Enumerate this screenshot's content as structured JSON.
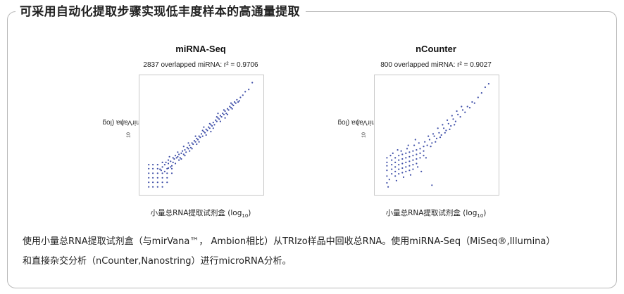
{
  "heading": "可采用自动化提取步骤实现低丰度样本的高通量提取",
  "chart_data": [
    {
      "type": "scatter",
      "title": "miRNA-Seq",
      "subtitle": "2837 overlapped miRNA: r² = 0.9706",
      "xlabel_main": "小量总RNA提取试剂盒 (log",
      "xlabel_sub": "10",
      "xlabel_end": ")",
      "ylabel_main": "mirVana (log",
      "ylabel_sub": "10",
      "ylabel_end": ")",
      "r_squared": 0.9706,
      "overlapped": 2837,
      "xlim": [
        0,
        10
      ],
      "ylim": [
        0,
        10
      ],
      "color": "#3f4fa8",
      "points": [
        [
          0.55,
          0.45
        ],
        [
          0.55,
          0.85
        ],
        [
          0.55,
          1.25
        ],
        [
          0.55,
          1.65
        ],
        [
          0.55,
          2.05
        ],
        [
          0.9,
          0.45
        ],
        [
          0.9,
          0.85
        ],
        [
          0.9,
          1.25
        ],
        [
          0.9,
          1.65
        ],
        [
          0.9,
          2.05
        ],
        [
          1.3,
          0.45
        ],
        [
          1.3,
          0.85
        ],
        [
          1.3,
          1.25
        ],
        [
          1.3,
          1.65
        ],
        [
          1.3,
          2.05
        ],
        [
          1.7,
          0.45
        ],
        [
          1.7,
          0.85
        ],
        [
          1.7,
          1.25
        ],
        [
          1.7,
          1.65
        ],
        [
          1.7,
          2.2
        ],
        [
          0.55,
          2.4
        ],
        [
          0.9,
          2.4
        ],
        [
          1.3,
          2.4
        ],
        [
          1.7,
          2.6
        ],
        [
          2.1,
          0.85
        ],
        [
          2.1,
          1.25
        ],
        [
          2.1,
          1.65
        ],
        [
          2.1,
          2.05
        ],
        [
          2.5,
          1.65
        ],
        [
          2.5,
          2.05
        ],
        [
          1.5,
          2.0
        ],
        [
          1.9,
          2.4
        ],
        [
          2.2,
          2.5
        ],
        [
          2.4,
          2.7
        ],
        [
          2.6,
          2.6
        ],
        [
          2.7,
          2.9
        ],
        [
          2.9,
          3.0
        ],
        [
          2.2,
          2.8
        ],
        [
          2.5,
          2.3
        ],
        [
          2.8,
          3.2
        ],
        [
          3.0,
          3.1
        ],
        [
          3.1,
          3.3
        ],
        [
          3.3,
          3.4
        ],
        [
          3.2,
          3.0
        ],
        [
          3.4,
          3.6
        ],
        [
          3.5,
          3.3
        ],
        [
          3.6,
          3.7
        ],
        [
          3.7,
          3.5
        ],
        [
          3.8,
          3.9
        ],
        [
          3.9,
          3.8
        ],
        [
          4.0,
          4.1
        ],
        [
          4.1,
          3.9
        ],
        [
          4.2,
          4.3
        ],
        [
          4.3,
          4.2
        ],
        [
          4.4,
          4.5
        ],
        [
          4.5,
          4.4
        ],
        [
          4.6,
          4.7
        ],
        [
          4.7,
          4.6
        ],
        [
          4.8,
          4.9
        ],
        [
          4.9,
          4.8
        ],
        [
          5.0,
          5.1
        ],
        [
          5.1,
          4.9
        ],
        [
          5.2,
          5.3
        ],
        [
          5.3,
          5.2
        ],
        [
          5.4,
          5.5
        ],
        [
          5.5,
          5.4
        ],
        [
          5.6,
          5.7
        ],
        [
          5.7,
          5.6
        ],
        [
          5.8,
          5.9
        ],
        [
          5.9,
          5.8
        ],
        [
          6.0,
          6.1
        ],
        [
          6.1,
          5.9
        ],
        [
          6.2,
          6.3
        ],
        [
          6.3,
          6.2
        ],
        [
          6.4,
          6.5
        ],
        [
          6.5,
          6.4
        ],
        [
          6.6,
          6.7
        ],
        [
          6.7,
          6.6
        ],
        [
          6.8,
          6.9
        ],
        [
          6.9,
          6.8
        ],
        [
          7.0,
          7.1
        ],
        [
          7.1,
          6.9
        ],
        [
          7.2,
          7.3
        ],
        [
          7.3,
          7.2
        ],
        [
          7.4,
          7.5
        ],
        [
          7.5,
          7.4
        ],
        [
          7.6,
          7.7
        ],
        [
          7.7,
          7.6
        ],
        [
          7.8,
          7.9
        ],
        [
          7.9,
          7.8
        ],
        [
          8.0,
          8.1
        ],
        [
          8.1,
          7.9
        ],
        [
          8.3,
          8.3
        ],
        [
          8.5,
          8.5
        ],
        [
          8.7,
          8.8
        ],
        [
          9.0,
          9.0
        ],
        [
          9.3,
          9.6
        ],
        [
          3.0,
          3.5
        ],
        [
          3.3,
          2.9
        ],
        [
          3.6,
          3.2
        ],
        [
          3.9,
          4.3
        ],
        [
          4.2,
          3.8
        ],
        [
          4.5,
          4.9
        ],
        [
          4.8,
          4.4
        ],
        [
          5.1,
          5.4
        ],
        [
          5.4,
          5.0
        ],
        [
          5.7,
          6.0
        ],
        [
          6.0,
          5.6
        ],
        [
          6.3,
          6.6
        ],
        [
          6.6,
          6.2
        ],
        [
          6.9,
          7.2
        ],
        [
          7.2,
          6.8
        ],
        [
          7.5,
          7.8
        ],
        [
          2.4,
          2.2
        ],
        [
          2.0,
          2.6
        ],
        [
          2.6,
          3.0
        ],
        [
          2.3,
          3.1
        ],
        [
          2.8,
          2.5
        ],
        [
          3.1,
          2.8
        ],
        [
          1.6,
          1.9
        ],
        [
          1.9,
          1.8
        ],
        [
          2.2,
          2.1
        ],
        [
          3.5,
          4.0
        ],
        [
          4.0,
          3.6
        ],
        [
          4.6,
          4.2
        ],
        [
          5.2,
          5.7
        ],
        [
          5.8,
          5.3
        ],
        [
          6.4,
          6.9
        ],
        [
          7.0,
          6.5
        ],
        [
          7.6,
          7.3
        ],
        [
          8.2,
          8.0
        ]
      ]
    },
    {
      "type": "scatter",
      "title": "nCounter",
      "subtitle": "800 overlapped miRNA: r² = 0.9027",
      "xlabel_main": "小量总RNA提取试剂盒 (log",
      "xlabel_sub": "10",
      "xlabel_end": ")",
      "ylabel_main": "mirVana (log",
      "ylabel_sub": "10",
      "ylabel_end": ")",
      "r_squared": 0.9027,
      "overlapped": 800,
      "xlim": [
        0,
        10
      ],
      "ylim": [
        0,
        10
      ],
      "color": "#3f4fa8",
      "points": [
        [
          0.8,
          2.6
        ],
        [
          0.8,
          2.3
        ],
        [
          0.8,
          1.9
        ],
        [
          0.8,
          1.4
        ],
        [
          0.8,
          0.8
        ],
        [
          1.2,
          2.8
        ],
        [
          1.2,
          2.4
        ],
        [
          1.2,
          2.0
        ],
        [
          1.2,
          1.6
        ],
        [
          1.5,
          3.0
        ],
        [
          1.5,
          2.6
        ],
        [
          1.5,
          2.2
        ],
        [
          1.5,
          1.8
        ],
        [
          1.5,
          1.4
        ],
        [
          1.8,
          3.2
        ],
        [
          1.8,
          2.8
        ],
        [
          1.8,
          2.4
        ],
        [
          1.8,
          2.0
        ],
        [
          1.8,
          1.6
        ],
        [
          2.1,
          3.3
        ],
        [
          2.1,
          2.9
        ],
        [
          2.1,
          2.5
        ],
        [
          2.1,
          2.1
        ],
        [
          2.1,
          1.7
        ],
        [
          2.4,
          3.4
        ],
        [
          2.4,
          3.0
        ],
        [
          2.4,
          2.6
        ],
        [
          2.4,
          2.2
        ],
        [
          2.4,
          1.8
        ],
        [
          2.7,
          3.5
        ],
        [
          2.7,
          3.1
        ],
        [
          2.7,
          2.7
        ],
        [
          2.7,
          2.3
        ],
        [
          2.7,
          1.9
        ],
        [
          3.0,
          3.6
        ],
        [
          3.0,
          3.2
        ],
        [
          3.0,
          2.8
        ],
        [
          3.0,
          2.4
        ],
        [
          3.0,
          2.0
        ],
        [
          3.3,
          3.7
        ],
        [
          3.3,
          3.3
        ],
        [
          3.3,
          2.9
        ],
        [
          3.3,
          2.5
        ],
        [
          3.6,
          3.8
        ],
        [
          3.6,
          3.4
        ],
        [
          3.6,
          3.0
        ],
        [
          3.9,
          4.0
        ],
        [
          3.9,
          3.6
        ],
        [
          3.9,
          3.2
        ],
        [
          2.0,
          3.6
        ],
        [
          2.5,
          3.8
        ],
        [
          3.1,
          4.1
        ],
        [
          3.5,
          4.3
        ],
        [
          4.0,
          4.4
        ],
        [
          4.2,
          4.1
        ],
        [
          4.4,
          4.6
        ],
        [
          4.6,
          4.3
        ],
        [
          4.8,
          4.9
        ],
        [
          5.0,
          4.7
        ],
        [
          5.2,
          5.2
        ],
        [
          5.4,
          5.0
        ],
        [
          5.6,
          5.6
        ],
        [
          5.8,
          5.4
        ],
        [
          6.0,
          6.0
        ],
        [
          6.2,
          5.8
        ],
        [
          6.4,
          6.4
        ],
        [
          6.6,
          6.2
        ],
        [
          6.8,
          6.8
        ],
        [
          7.0,
          6.6
        ],
        [
          7.2,
          7.2
        ],
        [
          7.4,
          7.0
        ],
        [
          7.6,
          7.5
        ],
        [
          7.8,
          7.4
        ],
        [
          8.0,
          7.9
        ],
        [
          8.2,
          7.8
        ],
        [
          8.5,
          8.3
        ],
        [
          8.8,
          8.7
        ],
        [
          9.1,
          9.2
        ],
        [
          9.4,
          9.5
        ],
        [
          4.3,
          4.9
        ],
        [
          4.7,
          5.1
        ],
        [
          5.1,
          5.6
        ],
        [
          5.5,
          5.9
        ],
        [
          5.9,
          6.3
        ],
        [
          6.3,
          6.7
        ],
        [
          6.7,
          7.1
        ],
        [
          7.1,
          7.5
        ],
        [
          4.5,
          4.0
        ],
        [
          4.9,
          4.4
        ],
        [
          5.3,
          4.8
        ],
        [
          5.7,
          5.2
        ],
        [
          6.1,
          5.5
        ],
        [
          6.5,
          5.9
        ],
        [
          1.0,
          1.1
        ],
        [
          1.6,
          1.0
        ],
        [
          2.2,
          1.3
        ],
        [
          2.8,
          1.5
        ],
        [
          3.4,
          2.2
        ],
        [
          1.3,
          3.4
        ],
        [
          1.7,
          3.7
        ],
        [
          2.6,
          4.1
        ],
        [
          3.2,
          4.6
        ],
        [
          0.9,
          0.45
        ],
        [
          4.6,
          0.6
        ],
        [
          3.7,
          1.8
        ],
        [
          4.1,
          3.0
        ],
        [
          0.8,
          3.0
        ],
        [
          1.1,
          3.2
        ]
      ]
    }
  ],
  "caption_line1": "使用小量总RNA提取试剂盒（与mirVana™，  Ambion相比）从TRIzo样品中回收总RNA。使用miRNA-Seq（MiSeq®,Illumina）",
  "caption_line2": "和直接杂交分析（nCounter,Nanostring）进行microRNA分析。"
}
